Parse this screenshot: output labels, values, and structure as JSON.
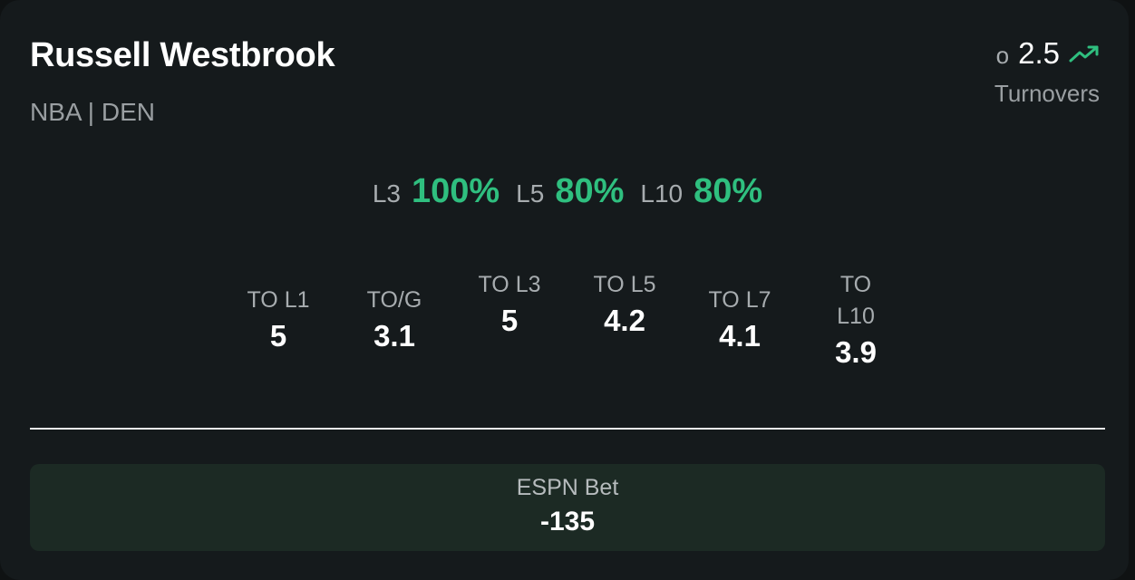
{
  "player": {
    "name": "Russell Westbrook",
    "meta": "NBA | DEN"
  },
  "line": {
    "side": "o",
    "value": "2.5",
    "market": "Turnovers",
    "trend_icon": "trending-up-icon",
    "trend_color": "#2fbf7f"
  },
  "hit_rates": [
    {
      "label": "L3",
      "value": "100%"
    },
    {
      "label": "L5",
      "value": "80%"
    },
    {
      "label": "L10",
      "value": "80%"
    }
  ],
  "stats": [
    {
      "label": "TO L1",
      "value": "5"
    },
    {
      "label": "TO/G",
      "value": "3.1"
    },
    {
      "label": "TO L3",
      "value": "5"
    },
    {
      "label": "TO L5",
      "value": "4.2"
    },
    {
      "label": "TO L7",
      "value": "4.1"
    },
    {
      "label": "TO L10",
      "value": "3.9"
    }
  ],
  "sportsbook": {
    "name": "ESPN Bet",
    "odds": "-135"
  },
  "colors": {
    "accent_green": "#2fbf7f",
    "card_background": "#151a1c",
    "book_background": "#1c2a24"
  }
}
